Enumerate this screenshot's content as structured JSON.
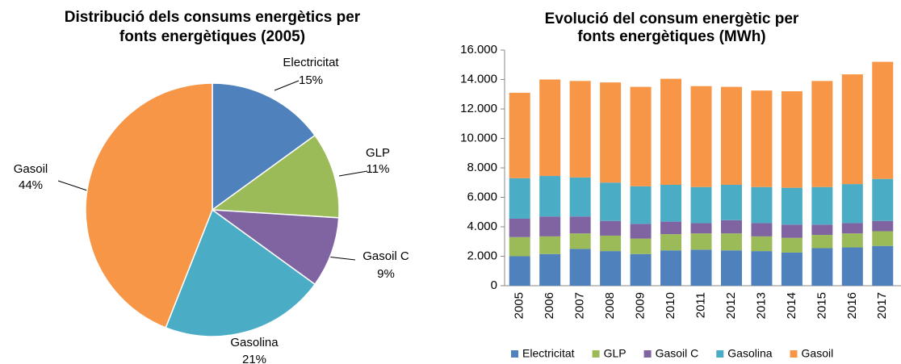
{
  "chart_data": [
    {
      "type": "pie",
      "title": "Distribució dels consums energètics per fonts energètiques (2005)",
      "categories": [
        "Electricitat",
        "GLP",
        "Gasoil C",
        "Gasolina",
        "Gasoil"
      ],
      "values": [
        15,
        11,
        9,
        21,
        44
      ],
      "value_labels": [
        "15%",
        "11%",
        "9%",
        "21%",
        "44%"
      ],
      "colors": [
        "#4f81bd",
        "#9bbb59",
        "#8064a2",
        "#4bacc6",
        "#f79646"
      ]
    },
    {
      "type": "stacked_bar",
      "title": "Evolució del consum energètic per fonts energètiques (MWh)",
      "categories": [
        "2005",
        "2006",
        "2007",
        "2008",
        "2009",
        "2010",
        "2011",
        "2012",
        "2013",
        "2014",
        "2015",
        "2016",
        "2017"
      ],
      "series": [
        {
          "name": "Electricitat",
          "color": "#4f81bd",
          "values": [
            2000,
            2150,
            2500,
            2350,
            2150,
            2400,
            2450,
            2400,
            2350,
            2250,
            2550,
            2600,
            2700
          ]
        },
        {
          "name": "GLP",
          "color": "#9bbb59",
          "values": [
            1300,
            1200,
            1050,
            1050,
            1050,
            1100,
            1100,
            1150,
            1000,
            1000,
            900,
            950,
            1000
          ]
        },
        {
          "name": "Gasoil C",
          "color": "#8064a2",
          "values": [
            1250,
            1350,
            1150,
            1000,
            1000,
            850,
            700,
            900,
            900,
            900,
            700,
            700,
            700
          ]
        },
        {
          "name": "Gasolina",
          "color": "#4bacc6",
          "values": [
            2750,
            2750,
            2650,
            2600,
            2550,
            2500,
            2450,
            2400,
            2450,
            2500,
            2550,
            2650,
            2850
          ]
        },
        {
          "name": "Gasoil",
          "color": "#f79646",
          "values": [
            5800,
            6550,
            6550,
            6800,
            6750,
            7200,
            6850,
            6650,
            6550,
            6550,
            7200,
            7450,
            7950
          ]
        }
      ],
      "ylim": [
        0,
        16000
      ],
      "yticks": [
        0,
        {
          "value": 2000,
          "label": "2.000"
        },
        {
          "value": 4000,
          "label": "4.000"
        },
        {
          "value": 6000,
          "label": "6.000"
        },
        {
          "value": 8000,
          "label": "8.000"
        },
        {
          "value": 10000,
          "label": "10.000"
        },
        {
          "value": 12000,
          "label": "12.000"
        },
        {
          "value": 14000,
          "label": "14.000"
        },
        {
          "value": 16000,
          "label": "16.000"
        }
      ],
      "legend": "bottom"
    }
  ]
}
